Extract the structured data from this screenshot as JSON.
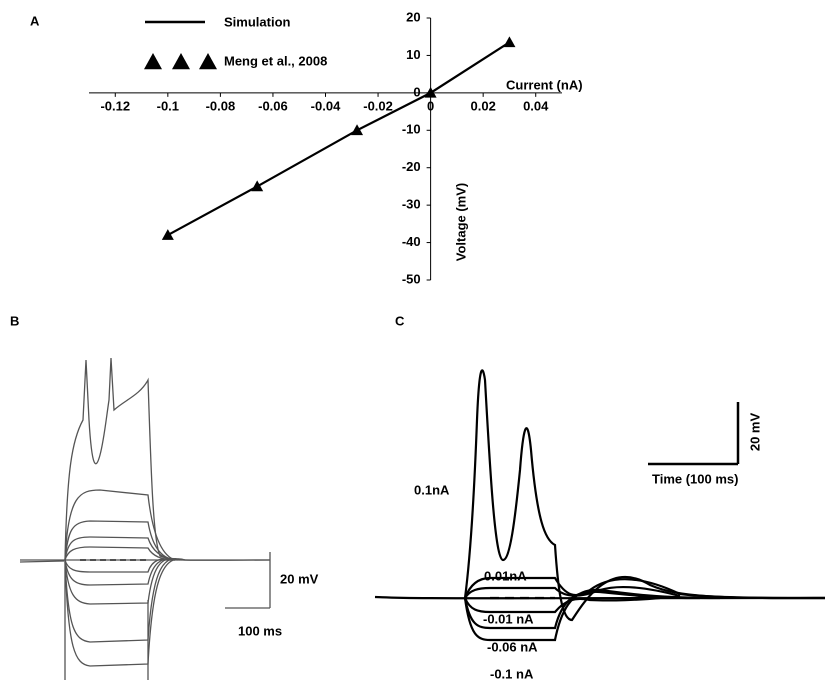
{
  "chart_data": {
    "type": "line",
    "panel_label": "A",
    "x_label": "Current (nA)",
    "y_label": "Voltage (mV)",
    "series": [
      {
        "name": "Simulation",
        "color": "#000000",
        "mode": "line",
        "x": [
          -0.1,
          -0.066,
          -0.028,
          0,
          0.03
        ],
        "values": [
          -38,
          -25,
          -10,
          0,
          13.5
        ]
      },
      {
        "name": "Meng et al., 2008",
        "color": "#000000",
        "mode": "marker",
        "x": [
          -0.1,
          -0.066,
          -0.028,
          0,
          0.03
        ],
        "values": [
          -38,
          -25,
          -10,
          0,
          13.5
        ]
      }
    ],
    "xlim": [
      -0.13,
      0.05
    ],
    "xticks": [
      -0.12,
      -0.1,
      -0.08,
      -0.06,
      -0.04,
      -0.02,
      0,
      0.02,
      0.04
    ],
    "ylim": [
      -50,
      20
    ],
    "yticks": [
      -50,
      -40,
      -30,
      -20,
      -10,
      0,
      10,
      20
    ]
  },
  "panel_b": {
    "label": "B",
    "scale_v": "20 mV",
    "scale_h": "100 ms"
  },
  "panel_c": {
    "label": "C",
    "scale_v": "20 mV",
    "scale_h": "Time (100 ms)",
    "trace_labels": [
      "0.1nA",
      "0.01nA",
      "-0.01 nA",
      "-0.06 nA",
      "-0.1 nA"
    ]
  }
}
